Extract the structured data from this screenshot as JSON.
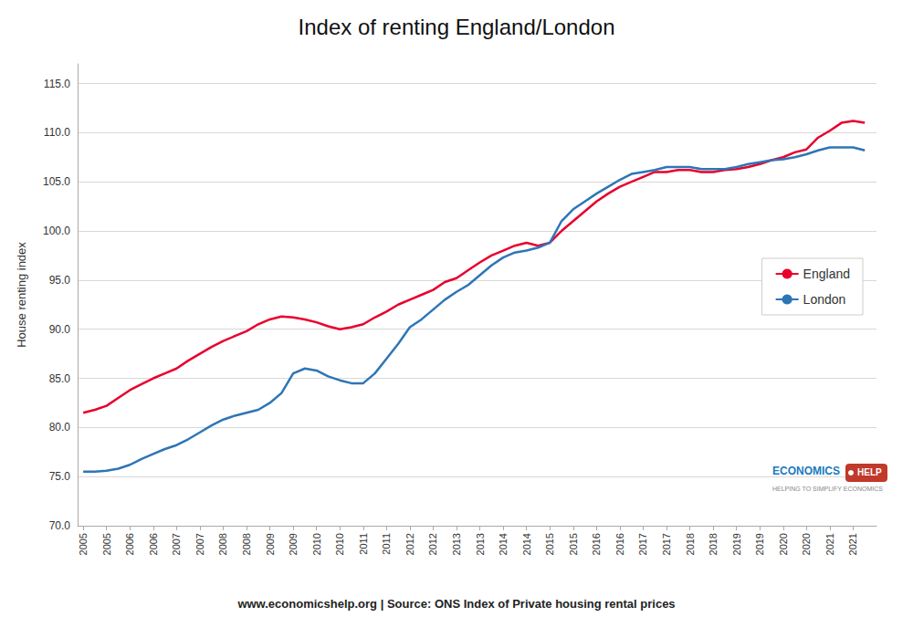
{
  "chart_data": {
    "type": "line",
    "title": "Index of renting England/London",
    "ylabel": "House renting index",
    "x": [
      2005.0,
      2005.25,
      2005.5,
      2005.75,
      2006.0,
      2006.25,
      2006.5,
      2006.75,
      2007.0,
      2007.25,
      2007.5,
      2007.75,
      2008.0,
      2008.25,
      2008.5,
      2008.75,
      2009.0,
      2009.25,
      2009.5,
      2009.75,
      2010.0,
      2010.25,
      2010.5,
      2010.75,
      2011.0,
      2011.25,
      2011.5,
      2011.75,
      2012.0,
      2012.25,
      2012.5,
      2012.75,
      2013.0,
      2013.25,
      2013.5,
      2013.75,
      2014.0,
      2014.25,
      2014.5,
      2014.75,
      2015.0,
      2015.25,
      2015.5,
      2015.75,
      2016.0,
      2016.25,
      2016.5,
      2016.75,
      2017.0,
      2017.25,
      2017.5,
      2017.75,
      2018.0,
      2018.25,
      2018.5,
      2018.75,
      2019.0,
      2019.25,
      2019.5,
      2019.75,
      2020.0,
      2020.25,
      2020.5,
      2020.75,
      2021.0,
      2021.25,
      2021.5,
      2021.75
    ],
    "series": [
      {
        "name": "England",
        "color": "#e8002d",
        "values": [
          81.5,
          81.8,
          82.2,
          83.0,
          83.8,
          84.4,
          85.0,
          85.5,
          86.0,
          86.8,
          87.5,
          88.2,
          88.8,
          89.3,
          89.8,
          90.5,
          91.0,
          91.3,
          91.2,
          91.0,
          90.7,
          90.3,
          90.0,
          90.2,
          90.5,
          91.2,
          91.8,
          92.5,
          93.0,
          93.5,
          94.0,
          94.8,
          95.2,
          96.0,
          96.8,
          97.5,
          98.0,
          98.5,
          98.8,
          98.5,
          98.8,
          100.0,
          101.0,
          102.0,
          103.0,
          103.8,
          104.5,
          105.0,
          105.5,
          106.0,
          106.0,
          106.2,
          106.2,
          106.0,
          106.0,
          106.2,
          106.3,
          106.5,
          106.8,
          107.2,
          107.5,
          108.0,
          108.3,
          109.5,
          110.2,
          111.0,
          111.2,
          111.0
        ]
      },
      {
        "name": "London",
        "color": "#2e75b6",
        "values": [
          75.5,
          75.5,
          75.6,
          75.8,
          76.2,
          76.8,
          77.3,
          77.8,
          78.2,
          78.8,
          79.5,
          80.2,
          80.8,
          81.2,
          81.5,
          81.8,
          82.5,
          83.5,
          85.5,
          86.0,
          85.8,
          85.2,
          84.8,
          84.5,
          84.5,
          85.5,
          87.0,
          88.5,
          90.2,
          91.0,
          92.0,
          93.0,
          93.8,
          94.5,
          95.5,
          96.5,
          97.3,
          97.8,
          98.0,
          98.3,
          98.8,
          101.0,
          102.2,
          103.0,
          103.8,
          104.5,
          105.2,
          105.8,
          106.0,
          106.2,
          106.5,
          106.5,
          106.5,
          106.3,
          106.3,
          106.3,
          106.5,
          106.8,
          107.0,
          107.2,
          107.3,
          107.5,
          107.8,
          108.2,
          108.5,
          108.5,
          108.5,
          108.2
        ]
      }
    ],
    "xlim": [
      2004.88,
      2022.0
    ],
    "xticks": [
      {
        "value": 2005.0,
        "label": "2005"
      },
      {
        "value": 2005.5,
        "label": "2005"
      },
      {
        "value": 2006.0,
        "label": "2006"
      },
      {
        "value": 2006.5,
        "label": "2006"
      },
      {
        "value": 2007.0,
        "label": "2007"
      },
      {
        "value": 2007.5,
        "label": "2007"
      },
      {
        "value": 2008.0,
        "label": "2008"
      },
      {
        "value": 2008.5,
        "label": "2008"
      },
      {
        "value": 2009.0,
        "label": "2009"
      },
      {
        "value": 2009.5,
        "label": "2009"
      },
      {
        "value": 2010.0,
        "label": "2010"
      },
      {
        "value": 2010.5,
        "label": "2010"
      },
      {
        "value": 2011.0,
        "label": "2011"
      },
      {
        "value": 2011.5,
        "label": "2011"
      },
      {
        "value": 2012.0,
        "label": "2012"
      },
      {
        "value": 2012.5,
        "label": "2012"
      },
      {
        "value": 2013.0,
        "label": "2013"
      },
      {
        "value": 2013.5,
        "label": "2013"
      },
      {
        "value": 2014.0,
        "label": "2014"
      },
      {
        "value": 2014.5,
        "label": "2014"
      },
      {
        "value": 2015.0,
        "label": "2015"
      },
      {
        "value": 2015.5,
        "label": "2015"
      },
      {
        "value": 2016.0,
        "label": "2016"
      },
      {
        "value": 2016.5,
        "label": "2016"
      },
      {
        "value": 2017.0,
        "label": "2017"
      },
      {
        "value": 2017.5,
        "label": "2017"
      },
      {
        "value": 2018.0,
        "label": "2018"
      },
      {
        "value": 2018.5,
        "label": "2018"
      },
      {
        "value": 2019.0,
        "label": "2019"
      },
      {
        "value": 2019.5,
        "label": "2019"
      },
      {
        "value": 2020.0,
        "label": "2020"
      },
      {
        "value": 2020.5,
        "label": "2020"
      },
      {
        "value": 2021.0,
        "label": "2021"
      },
      {
        "value": 2021.5,
        "label": "2021"
      }
    ],
    "ylim": [
      70.0,
      117.0
    ],
    "yticks": [
      {
        "value": 70.0,
        "label": "70.0"
      },
      {
        "value": 75.0,
        "label": "75.0"
      },
      {
        "value": 80.0,
        "label": "80.0"
      },
      {
        "value": 85.0,
        "label": "85.0"
      },
      {
        "value": 90.0,
        "label": "90.0"
      },
      {
        "value": 95.0,
        "label": "95.0"
      },
      {
        "value": 100.0,
        "label": "100.0"
      },
      {
        "value": 105.0,
        "label": "105.0"
      },
      {
        "value": 110.0,
        "label": "110.0"
      },
      {
        "value": 115.0,
        "label": "115.0"
      }
    ],
    "grid": true,
    "legend": "right",
    "annotations": [
      {
        "text": "ECONOMICS",
        "color": "#1a7abf"
      },
      {
        "text": "HELP",
        "color": "#c0392b"
      },
      {
        "text": "HELPING TO SIMPLIFY ECONOMICS"
      },
      {
        "text": "www.economicshelp.org | Source: ONS Index of Private housing rental prices"
      }
    ]
  }
}
